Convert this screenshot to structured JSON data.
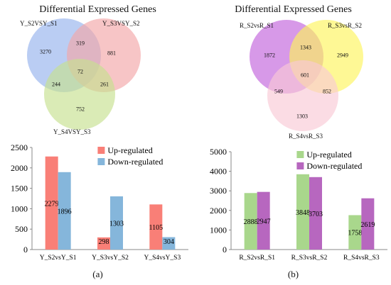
{
  "venn_a": {
    "title": "Differential Expressed Genes",
    "sets": [
      "Y_S2VSY_S1",
      "Y_S3VSY_S2",
      "Y_S4VSY_S3"
    ],
    "regions": {
      "only1": "3270",
      "only2": "881",
      "only3": "752",
      "r12": "319",
      "r13": "244",
      "r23": "261",
      "r123": "72"
    },
    "colors": [
      "#9db8ee",
      "#f2a6a8",
      "#c6e08f"
    ]
  },
  "venn_b": {
    "title": "Differential Expressed Genes",
    "sets": [
      "R_S2vsR_S1",
      "R_S3vsR_S2",
      "R_S4vsR_S3"
    ],
    "regions": {
      "only1": "1872",
      "only2": "2949",
      "only3": "1303",
      "r12": "1343",
      "r13": "549",
      "r23": "852",
      "r123": "601"
    },
    "colors": [
      "#c977e0",
      "#fdf55c",
      "#f9c9d6"
    ]
  },
  "chart_data": [
    {
      "type": "bar",
      "categories": [
        "Y_S2vsY_S1",
        "Y_S3vsY_S2",
        "Y_S4vsY_S3"
      ],
      "series": [
        {
          "name": "Up-regulated",
          "values": [
            2279,
            298,
            1105
          ],
          "color": "#f97f77"
        },
        {
          "name": "Down-regulated",
          "values": [
            1896,
            1303,
            304
          ],
          "color": "#85b6db"
        }
      ],
      "ylim": [
        0,
        2500
      ],
      "yticks": [
        0,
        500,
        1000,
        1500,
        2000,
        2500
      ],
      "legend": "top-right",
      "panel_label": "(a)"
    },
    {
      "type": "bar",
      "categories": [
        "R_S2vsR_S1",
        "R_S3vsR_S2",
        "R_S4vsR_S3"
      ],
      "series": [
        {
          "name": "Up-regulated",
          "values": [
            2888,
            3848,
            1758
          ],
          "color": "#a9d78c"
        },
        {
          "name": "Down-regulated",
          "values": [
            2947,
            3703,
            2619
          ],
          "color": "#b767bf"
        }
      ],
      "ylim": [
        0,
        5000
      ],
      "yticks": [
        0,
        1000,
        2000,
        3000,
        4000,
        5000
      ],
      "legend": "top-right",
      "panel_label": "(b)"
    }
  ]
}
